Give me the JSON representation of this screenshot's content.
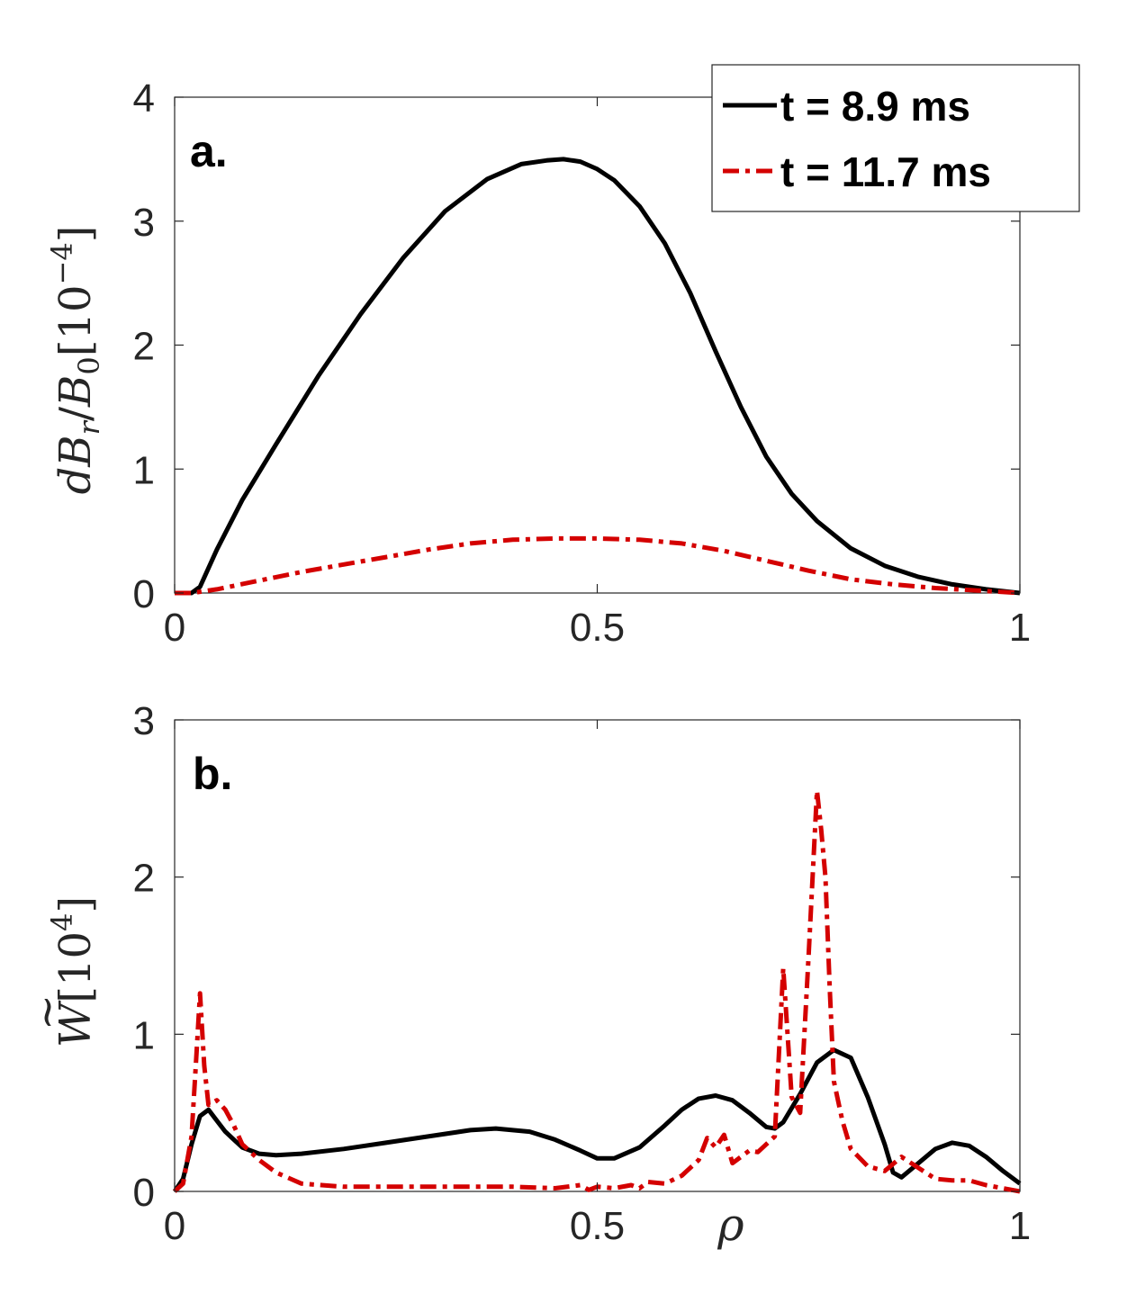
{
  "chart_data": [
    {
      "type": "line",
      "panel_label": "a.",
      "ylabel_parts": {
        "d": "d",
        "B": "B",
        "r": "r",
        "slash": "/",
        "B0": "B",
        "zero": "0",
        "bracket_open": "[",
        "base": "10",
        "exp": "−4",
        "bracket_close": "]"
      },
      "xlabel": "",
      "xlim": [
        0,
        1
      ],
      "ylim": [
        0,
        4
      ],
      "xticks": [
        0,
        0.5,
        1
      ],
      "xtick_labels": [
        "0",
        "0.5",
        "1"
      ],
      "yticks": [
        0,
        1,
        2,
        3,
        4
      ],
      "ytick_labels": [
        "0",
        "1",
        "2",
        "3",
        "4"
      ],
      "legend": {
        "location": "top-right",
        "entries": [
          "t = 8.9 ms",
          "t = 11.7 ms"
        ]
      },
      "series": [
        {
          "name": "t = 8.9 ms",
          "color": "#000000",
          "style": "solid",
          "x": [
            0,
            0.02,
            0.03,
            0.05,
            0.08,
            0.12,
            0.17,
            0.22,
            0.27,
            0.32,
            0.37,
            0.41,
            0.44,
            0.46,
            0.48,
            0.5,
            0.52,
            0.55,
            0.58,
            0.61,
            0.64,
            0.67,
            0.7,
            0.73,
            0.76,
            0.8,
            0.84,
            0.88,
            0.92,
            0.96,
            1.0
          ],
          "y": [
            0,
            0,
            0.05,
            0.35,
            0.75,
            1.2,
            1.75,
            2.25,
            2.7,
            3.08,
            3.34,
            3.46,
            3.49,
            3.5,
            3.48,
            3.42,
            3.33,
            3.12,
            2.82,
            2.42,
            1.95,
            1.5,
            1.1,
            0.8,
            0.58,
            0.36,
            0.22,
            0.13,
            0.07,
            0.03,
            0
          ]
        },
        {
          "name": "t = 11.7 ms",
          "color": "#d40000",
          "style": "dashdot",
          "x": [
            0,
            0.02,
            0.05,
            0.1,
            0.15,
            0.2,
            0.25,
            0.3,
            0.35,
            0.4,
            0.45,
            0.5,
            0.55,
            0.6,
            0.65,
            0.7,
            0.75,
            0.8,
            0.85,
            0.9,
            0.95,
            1.0
          ],
          "y": [
            0,
            0,
            0.03,
            0.1,
            0.17,
            0.23,
            0.29,
            0.35,
            0.4,
            0.43,
            0.44,
            0.44,
            0.43,
            0.4,
            0.34,
            0.26,
            0.18,
            0.11,
            0.07,
            0.04,
            0.02,
            0
          ]
        }
      ]
    },
    {
      "type": "line",
      "panel_label": "b.",
      "ylabel_parts": {
        "W": "W",
        "tilde": "~",
        "bracket_open": "[",
        "base": "10",
        "exp": "4",
        "bracket_close": "]"
      },
      "xlabel": "ρ",
      "xlim": [
        0,
        1
      ],
      "ylim": [
        0,
        3
      ],
      "xticks": [
        0,
        0.5,
        1
      ],
      "xtick_labels": [
        "0",
        "0.5",
        "1"
      ],
      "yticks": [
        0,
        1,
        2,
        3
      ],
      "ytick_labels": [
        "0",
        "1",
        "2",
        "3"
      ],
      "series": [
        {
          "name": "t = 8.9 ms",
          "color": "#000000",
          "style": "solid",
          "x": [
            0,
            0.01,
            0.02,
            0.03,
            0.04,
            0.05,
            0.06,
            0.08,
            0.1,
            0.12,
            0.15,
            0.2,
            0.25,
            0.3,
            0.35,
            0.38,
            0.42,
            0.45,
            0.48,
            0.5,
            0.52,
            0.55,
            0.58,
            0.6,
            0.62,
            0.64,
            0.66,
            0.68,
            0.7,
            0.71,
            0.72,
            0.74,
            0.76,
            0.78,
            0.8,
            0.82,
            0.84,
            0.85,
            0.86,
            0.88,
            0.9,
            0.92,
            0.94,
            0.96,
            0.98,
            1.0
          ],
          "y": [
            0,
            0.08,
            0.3,
            0.48,
            0.52,
            0.45,
            0.38,
            0.28,
            0.24,
            0.23,
            0.24,
            0.27,
            0.31,
            0.35,
            0.39,
            0.4,
            0.38,
            0.33,
            0.26,
            0.21,
            0.21,
            0.28,
            0.42,
            0.52,
            0.59,
            0.61,
            0.58,
            0.5,
            0.41,
            0.4,
            0.44,
            0.62,
            0.82,
            0.9,
            0.85,
            0.6,
            0.3,
            0.12,
            0.09,
            0.18,
            0.27,
            0.31,
            0.29,
            0.22,
            0.13,
            0.05
          ]
        },
        {
          "name": "t = 11.7 ms",
          "color": "#d40000",
          "style": "dashdot",
          "x": [
            0,
            0.01,
            0.02,
            0.025,
            0.03,
            0.035,
            0.04,
            0.05,
            0.06,
            0.07,
            0.08,
            0.1,
            0.12,
            0.15,
            0.2,
            0.25,
            0.3,
            0.35,
            0.4,
            0.45,
            0.48,
            0.49,
            0.5,
            0.52,
            0.54,
            0.55,
            0.56,
            0.58,
            0.6,
            0.62,
            0.63,
            0.64,
            0.65,
            0.66,
            0.67,
            0.68,
            0.69,
            0.7,
            0.71,
            0.72,
            0.73,
            0.74,
            0.75,
            0.76,
            0.765,
            0.77,
            0.775,
            0.78,
            0.79,
            0.8,
            0.82,
            0.84,
            0.86,
            0.88,
            0.9,
            0.92,
            0.94,
            0.96,
            0.98,
            1.0
          ],
          "y": [
            0,
            0.05,
            0.35,
            0.8,
            1.26,
            0.8,
            0.55,
            0.58,
            0.52,
            0.42,
            0.3,
            0.2,
            0.12,
            0.05,
            0.03,
            0.03,
            0.03,
            0.03,
            0.03,
            0.02,
            0.04,
            0.01,
            0.03,
            0.02,
            0.04,
            0.02,
            0.06,
            0.05,
            0.1,
            0.2,
            0.34,
            0.28,
            0.36,
            0.18,
            0.22,
            0.26,
            0.25,
            0.3,
            0.35,
            1.42,
            0.6,
            0.5,
            1.5,
            2.55,
            2.3,
            2.0,
            1.3,
            0.7,
            0.45,
            0.27,
            0.16,
            0.13,
            0.22,
            0.15,
            0.08,
            0.07,
            0.07,
            0.04,
            0.02,
            0
          ]
        }
      ]
    }
  ]
}
